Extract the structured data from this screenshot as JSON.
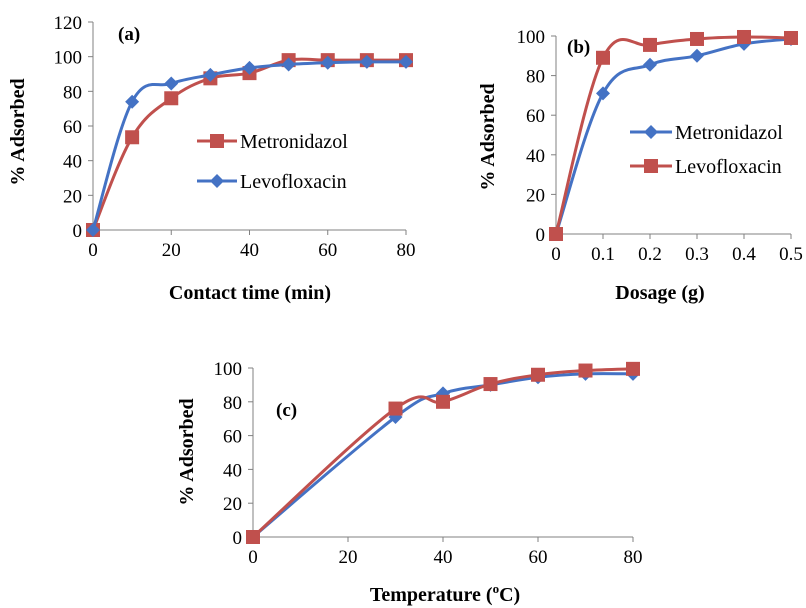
{
  "colors": {
    "blue": "#4472C4",
    "red": "#C0504D",
    "axis": "#808080"
  },
  "chart_data": [
    {
      "type": "line",
      "panel": "(a)",
      "xlabel": "Contact time (min)",
      "ylabel": "% Adsorbed",
      "xlim": [
        0,
        80
      ],
      "ylim": [
        0,
        120
      ],
      "xticks": [
        "0",
        "20",
        "40",
        "60",
        "80"
      ],
      "yticks": [
        "0",
        "20",
        "40",
        "60",
        "80",
        "100",
        "120"
      ],
      "legend": "right",
      "grid": false,
      "series": [
        {
          "name": "Metronidazol",
          "color": "#C0504D",
          "marker": "square",
          "x": [
            0,
            10,
            20,
            30,
            40,
            50,
            60,
            70,
            80
          ],
          "y": [
            0,
            53.5,
            76,
            87.5,
            90.5,
            98,
            98,
            98,
            98
          ]
        },
        {
          "name": "Levofloxacin",
          "color": "#4472C4",
          "marker": "diamond",
          "x": [
            0,
            10,
            20,
            30,
            40,
            50,
            60,
            70,
            80
          ],
          "y": [
            0,
            74,
            84.5,
            89.5,
            93.5,
            95.5,
            96.5,
            97,
            97
          ]
        }
      ]
    },
    {
      "type": "line",
      "panel": "(b)",
      "xlabel": "Dosage (g)",
      "ylabel": "% Adsorbed",
      "xlim": [
        0,
        0.5
      ],
      "ylim": [
        0,
        100
      ],
      "xticks": [
        "0",
        "0.1",
        "0.2",
        "0.3",
        "0.4",
        "0.5"
      ],
      "yticks": [
        "0",
        "20",
        "40",
        "60",
        "80",
        "100"
      ],
      "legend": "right",
      "grid": false,
      "series": [
        {
          "name": "Metronidazol",
          "color": "#4472C4",
          "marker": "diamond",
          "x": [
            0,
            0.1,
            0.2,
            0.3,
            0.4,
            0.5
          ],
          "y": [
            0,
            71,
            85.5,
            90,
            96,
            98.5
          ]
        },
        {
          "name": "Levofloxacin",
          "color": "#C0504D",
          "marker": "square",
          "x": [
            0,
            0.1,
            0.2,
            0.3,
            0.4,
            0.5
          ],
          "y": [
            0,
            89,
            95.5,
            98.5,
            99.5,
            99
          ]
        }
      ]
    },
    {
      "type": "line",
      "panel": "(c)",
      "xlabel": "Temperature (",
      "xlabel_sup": "o",
      "xlabel_end": "C)",
      "ylabel": "% Adsorbed",
      "xlim": [
        0,
        80
      ],
      "ylim": [
        0,
        100
      ],
      "xticks": [
        "0",
        "20",
        "40",
        "60",
        "80"
      ],
      "yticks": [
        "0",
        "20",
        "40",
        "60",
        "80",
        "100"
      ],
      "legend": "none",
      "grid": false,
      "series": [
        {
          "name": "",
          "color": "#4472C4",
          "marker": "diamond",
          "x": [
            0,
            30,
            40,
            50,
            60,
            70,
            80
          ],
          "y": [
            0,
            71,
            85,
            90,
            94.5,
            96.5,
            96.5
          ]
        },
        {
          "name": "",
          "color": "#C0504D",
          "marker": "square",
          "x": [
            0,
            30,
            40,
            50,
            60,
            70,
            80
          ],
          "y": [
            0,
            76,
            80,
            90.5,
            96,
            98.5,
            99.5
          ]
        }
      ]
    }
  ]
}
